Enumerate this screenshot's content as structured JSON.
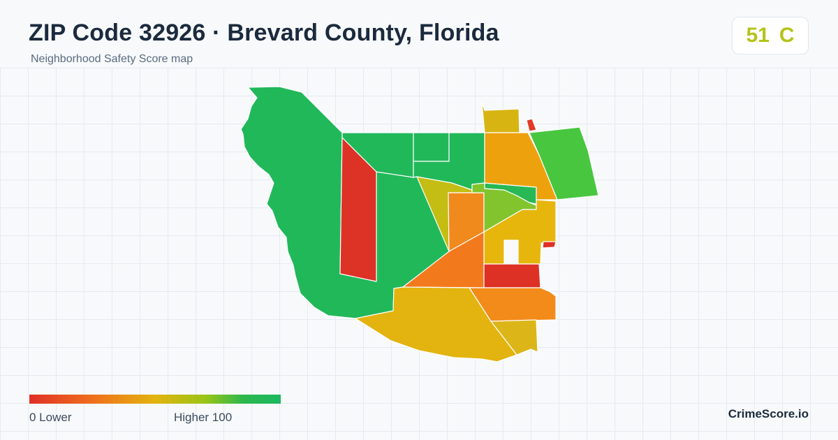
{
  "header": {
    "title": "ZIP Code 32926 · Brevard County, Florida",
    "subtitle": "Neighborhood Safety Score map"
  },
  "score": {
    "value": "51",
    "grade": "C",
    "color": "#b5c21a"
  },
  "legend": {
    "low_label": "0  Lower",
    "high_label": "Higher  100",
    "colors": [
      "#e02f26",
      "#ef6f1c",
      "#e3b30f",
      "#99c417",
      "#2db84c",
      "#1bb860"
    ]
  },
  "brand": "CrimeScore.io",
  "map": {
    "region_colors": {
      "west_large": "#21b85a",
      "red_strip": "#dd3226",
      "north_green_a": "#21b85a",
      "north_green_b": "#21b85a",
      "north_green_c": "#21b85a",
      "central_green": "#21b85a",
      "olive": "#c4bd13",
      "orange_center": "#f08a1c",
      "orange_big": "#f37a1c",
      "yellow_mid": "#e6b60d",
      "light_green_mid": "#82c42e",
      "green_band": "#28b855",
      "yellow_top": "#d8b413",
      "orange_ne": "#eda20d",
      "bright_green_ne": "#48c640",
      "red_dot_top": "#e23a25",
      "red_dot_right": "#e02f24",
      "red_block_se": "#de3125",
      "orange_se": "#f28b1a",
      "yellow_south": "#e3b30f",
      "yellow_se_small": "#dcb619"
    }
  }
}
